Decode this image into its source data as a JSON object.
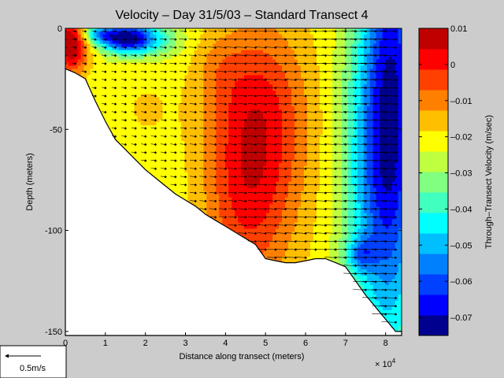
{
  "chart_data": {
    "type": "heatmap",
    "title": "Velocity – Day 31/5/03 – Standard Transect 4",
    "xlabel": "Distance along transect (meters)",
    "ylabel": "Depth (meters)",
    "x_multiplier": "× 10",
    "x_multiplier_exp": "4",
    "xlim": [
      0,
      84000
    ],
    "ylim": [
      -152,
      0
    ],
    "xticks": [
      0,
      1,
      2,
      3,
      4,
      5,
      6,
      7,
      8
    ],
    "yticks": [
      0,
      -50,
      -100,
      -150
    ],
    "colorbar": {
      "label": "Through–Transect Velocity (m/sec)",
      "range": [
        -0.075,
        0.01
      ],
      "ticks": [
        "0.01",
        "0",
        "–0.01",
        "–0.02",
        "–0.03",
        "–0.04",
        "–0.05",
        "–0.06",
        "–0.07"
      ],
      "tick_values": [
        0.01,
        0,
        -0.01,
        -0.02,
        -0.03,
        -0.04,
        -0.05,
        -0.06,
        -0.07
      ],
      "colors": [
        "#00008f",
        "#0000ff",
        "#0040ff",
        "#0080ff",
        "#00bfff",
        "#00ffff",
        "#40ffbf",
        "#80ff80",
        "#bfff40",
        "#ffff00",
        "#ffbf00",
        "#ff8000",
        "#ff4000",
        "#ff0000",
        "#bf0000"
      ]
    },
    "bathymetry": {
      "x": [
        0,
        2400,
        5000,
        7500,
        10000,
        12500,
        15000,
        17500,
        20000,
        22500,
        25000,
        27500,
        30000,
        32500,
        35000,
        37500,
        40000,
        42500,
        45000,
        47500,
        50000,
        52500,
        55000,
        57500,
        60000,
        62500,
        65000,
        67500,
        70000,
        72500,
        75000,
        77500,
        80000,
        82500
      ],
      "depth": [
        -20,
        -22,
        -25,
        -36,
        -46,
        -55,
        -60,
        -65,
        -70,
        -74,
        -78,
        -82,
        -85,
        -88,
        -92,
        -95,
        -98,
        -101,
        -104,
        -107,
        -114,
        -115,
        -116,
        -116,
        -115,
        -114,
        -114,
        -116,
        -118,
        -125,
        -132,
        -138,
        -144,
        -150
      ]
    },
    "legend": {
      "scale_label": "0.5m/s"
    }
  }
}
